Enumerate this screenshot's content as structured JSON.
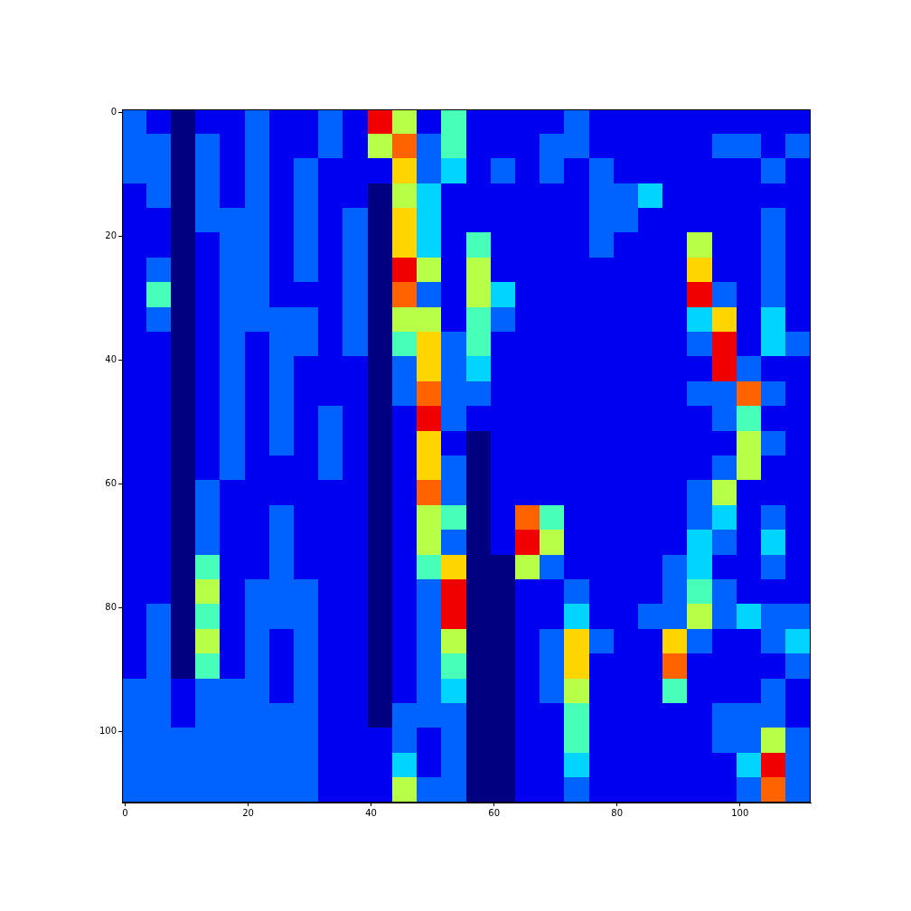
{
  "chart_data": {
    "type": "heatmap",
    "x": [
      1.5,
      5.5,
      9.5,
      13.5,
      17.5,
      21.5,
      25.5,
      29.5,
      33.5,
      37.5,
      41.5,
      45.5,
      49.5,
      53.5,
      57.5,
      61.5,
      65.5,
      69.5,
      73.5,
      77.5,
      81.5,
      85.5,
      89.5,
      93.5,
      97.5,
      101.5,
      105.5,
      109.5
    ],
    "y": [
      1.5,
      5.5,
      9.5,
      13.5,
      17.5,
      21.5,
      25.5,
      29.5,
      33.5,
      37.5,
      41.5,
      45.5,
      49.5,
      53.5,
      57.5,
      61.5,
      65.5,
      69.5,
      73.5,
      77.5,
      81.5,
      85.5,
      89.5,
      93.5,
      97.5,
      101.5,
      105.5,
      109.5
    ],
    "cells": [
      [
        3,
        2,
        1,
        2,
        2,
        3,
        2,
        2,
        3,
        2,
        9,
        6,
        2,
        5,
        2,
        2,
        2,
        2,
        3,
        2,
        2,
        2,
        2,
        2,
        2,
        2,
        2,
        2
      ],
      [
        3,
        3,
        1,
        3,
        2,
        3,
        2,
        2,
        3,
        2,
        6,
        8,
        3,
        5,
        2,
        2,
        2,
        3,
        3,
        2,
        2,
        2,
        2,
        2,
        3,
        3,
        2,
        3
      ],
      [
        3,
        3,
        1,
        3,
        2,
        3,
        2,
        3,
        2,
        2,
        2,
        7,
        3,
        4,
        2,
        3,
        2,
        3,
        2,
        3,
        2,
        2,
        2,
        2,
        2,
        2,
        3,
        2
      ],
      [
        2,
        3,
        1,
        3,
        2,
        3,
        2,
        3,
        2,
        2,
        1,
        6,
        4,
        2,
        2,
        2,
        2,
        2,
        2,
        3,
        3,
        4,
        2,
        2,
        2,
        2,
        2,
        2
      ],
      [
        2,
        2,
        1,
        3,
        3,
        3,
        2,
        3,
        2,
        3,
        1,
        7,
        4,
        2,
        2,
        2,
        2,
        2,
        2,
        3,
        3,
        2,
        2,
        2,
        2,
        2,
        3,
        2
      ],
      [
        2,
        2,
        1,
        2,
        3,
        3,
        2,
        3,
        2,
        3,
        1,
        7,
        4,
        2,
        5,
        2,
        2,
        2,
        2,
        3,
        2,
        2,
        2,
        6,
        2,
        2,
        3,
        2
      ],
      [
        2,
        3,
        1,
        2,
        3,
        3,
        2,
        3,
        2,
        3,
        1,
        9,
        6,
        2,
        6,
        2,
        2,
        2,
        2,
        2,
        2,
        2,
        2,
        7,
        2,
        2,
        3,
        2
      ],
      [
        2,
        5,
        1,
        2,
        3,
        3,
        2,
        2,
        2,
        3,
        1,
        8,
        3,
        2,
        6,
        4,
        2,
        2,
        2,
        2,
        2,
        2,
        2,
        9,
        3,
        2,
        3,
        2
      ],
      [
        2,
        3,
        1,
        2,
        3,
        3,
        3,
        3,
        2,
        3,
        1,
        6,
        6,
        2,
        5,
        3,
        2,
        2,
        2,
        2,
        2,
        2,
        2,
        4,
        7,
        2,
        4,
        2
      ],
      [
        2,
        2,
        1,
        2,
        3,
        2,
        3,
        3,
        2,
        3,
        1,
        5,
        7,
        3,
        5,
        2,
        2,
        2,
        2,
        2,
        2,
        2,
        2,
        3,
        9,
        2,
        4,
        3
      ],
      [
        2,
        2,
        1,
        2,
        3,
        2,
        3,
        2,
        2,
        2,
        1,
        3,
        7,
        3,
        4,
        2,
        2,
        2,
        2,
        2,
        2,
        2,
        2,
        2,
        9,
        3,
        2,
        2
      ],
      [
        2,
        2,
        1,
        2,
        3,
        2,
        3,
        2,
        2,
        2,
        1,
        3,
        8,
        3,
        3,
        2,
        2,
        2,
        2,
        2,
        2,
        2,
        2,
        3,
        3,
        8,
        3,
        2
      ],
      [
        2,
        2,
        1,
        2,
        3,
        2,
        3,
        2,
        3,
        2,
        1,
        2,
        9,
        3,
        2,
        2,
        2,
        2,
        2,
        2,
        2,
        2,
        2,
        2,
        3,
        5,
        2,
        2
      ],
      [
        2,
        2,
        1,
        2,
        3,
        2,
        3,
        2,
        3,
        2,
        1,
        2,
        7,
        2,
        1,
        2,
        2,
        2,
        2,
        2,
        2,
        2,
        2,
        2,
        2,
        6,
        3,
        2
      ],
      [
        2,
        2,
        1,
        2,
        3,
        2,
        2,
        2,
        3,
        2,
        1,
        2,
        7,
        3,
        1,
        2,
        2,
        2,
        2,
        2,
        2,
        2,
        2,
        2,
        3,
        6,
        2,
        2
      ],
      [
        2,
        2,
        1,
        3,
        2,
        2,
        2,
        2,
        2,
        2,
        1,
        2,
        8,
        3,
        1,
        2,
        2,
        2,
        2,
        2,
        2,
        2,
        2,
        3,
        6,
        2,
        2,
        2
      ],
      [
        2,
        2,
        1,
        3,
        2,
        2,
        3,
        2,
        2,
        2,
        1,
        2,
        6,
        5,
        1,
        2,
        8,
        5,
        2,
        2,
        2,
        2,
        2,
        3,
        4,
        2,
        3,
        2
      ],
      [
        2,
        2,
        1,
        3,
        2,
        2,
        3,
        2,
        2,
        2,
        1,
        2,
        6,
        3,
        1,
        2,
        9,
        6,
        2,
        2,
        2,
        2,
        2,
        4,
        3,
        2,
        4,
        2
      ],
      [
        2,
        2,
        1,
        5,
        2,
        2,
        3,
        2,
        2,
        2,
        1,
        2,
        5,
        7,
        1,
        1,
        6,
        3,
        2,
        2,
        2,
        2,
        3,
        4,
        2,
        2,
        3,
        2
      ],
      [
        2,
        2,
        1,
        6,
        2,
        3,
        3,
        3,
        2,
        2,
        1,
        2,
        3,
        9,
        1,
        1,
        2,
        2,
        3,
        2,
        2,
        2,
        3,
        5,
        3,
        2,
        2,
        2
      ],
      [
        2,
        3,
        1,
        5,
        2,
        3,
        3,
        3,
        2,
        2,
        1,
        2,
        3,
        9,
        1,
        1,
        2,
        2,
        4,
        2,
        2,
        3,
        3,
        6,
        3,
        4,
        3,
        3
      ],
      [
        2,
        3,
        1,
        6,
        2,
        3,
        2,
        3,
        2,
        2,
        1,
        2,
        3,
        6,
        1,
        1,
        2,
        3,
        7,
        3,
        2,
        2,
        7,
        3,
        2,
        2,
        3,
        4
      ],
      [
        2,
        3,
        1,
        5,
        2,
        3,
        2,
        3,
        2,
        2,
        1,
        2,
        3,
        5,
        1,
        1,
        2,
        3,
        7,
        2,
        2,
        2,
        8,
        2,
        2,
        2,
        2,
        3
      ],
      [
        3,
        3,
        2,
        3,
        3,
        3,
        2,
        3,
        2,
        2,
        1,
        2,
        3,
        4,
        1,
        1,
        2,
        3,
        6,
        2,
        2,
        2,
        5,
        2,
        2,
        2,
        3,
        2
      ],
      [
        3,
        3,
        2,
        3,
        3,
        3,
        3,
        3,
        2,
        2,
        1,
        3,
        3,
        3,
        1,
        1,
        2,
        2,
        5,
        2,
        2,
        2,
        2,
        2,
        3,
        3,
        3,
        2
      ],
      [
        3,
        3,
        3,
        3,
        3,
        3,
        3,
        3,
        2,
        2,
        2,
        3,
        2,
        3,
        1,
        1,
        2,
        2,
        5,
        2,
        2,
        2,
        2,
        2,
        3,
        3,
        6,
        3
      ],
      [
        3,
        3,
        3,
        3,
        3,
        3,
        3,
        3,
        2,
        2,
        2,
        4,
        2,
        3,
        1,
        1,
        2,
        2,
        4,
        2,
        2,
        2,
        2,
        2,
        2,
        4,
        9,
        3
      ],
      [
        3,
        3,
        3,
        3,
        3,
        3,
        3,
        3,
        2,
        2,
        2,
        6,
        3,
        3,
        1,
        1,
        2,
        2,
        3,
        2,
        2,
        2,
        2,
        2,
        2,
        3,
        8,
        3
      ]
    ],
    "clim": [
      1,
      10
    ],
    "xlim": [
      -0.5,
      111.5
    ],
    "ylim": [
      111.5,
      -0.5
    ],
    "xticks": [
      0,
      20,
      40,
      60,
      80,
      100
    ],
    "yticks": [
      0,
      20,
      40,
      60,
      80,
      100
    ],
    "grid": false
  }
}
